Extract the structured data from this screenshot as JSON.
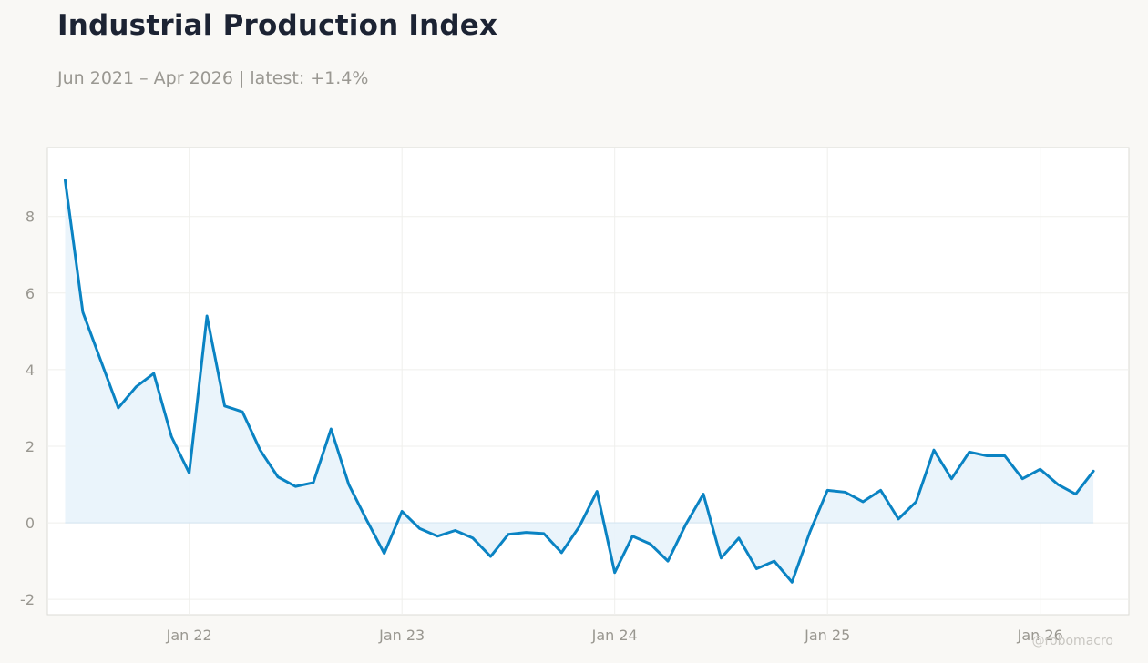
{
  "header": {
    "title": "Industrial Production Index",
    "subtitle": "Jun 2021 – Apr 2026 | latest: +1.4%"
  },
  "watermark": "@robomacro",
  "colors": {
    "line": "#0a83c3",
    "fill": "#e8f3fb",
    "background": "#f9f8f5",
    "plot_background": "#ffffff",
    "grid": "#efefec"
  },
  "chart_data": {
    "type": "area",
    "title": "Industrial Production Index",
    "xlabel": "",
    "ylabel": "",
    "x_range": [
      "2021-05",
      "2026-06"
    ],
    "ylim": [
      -2.4,
      9.8
    ],
    "yticks": [
      -2,
      0,
      2,
      4,
      6,
      8
    ],
    "ytick_labels": [
      "-2",
      "0",
      "2",
      "4",
      "6",
      "8"
    ],
    "xticks": [
      {
        "date": "2022-01",
        "label": "Jan 22"
      },
      {
        "date": "2023-01",
        "label": "Jan 23"
      },
      {
        "date": "2024-01",
        "label": "Jan 24"
      },
      {
        "date": "2025-01",
        "label": "Jan 25"
      },
      {
        "date": "2026-01",
        "label": "Jan 26"
      }
    ],
    "grid": true,
    "legend": "none",
    "series": [
      {
        "dates": [
          "2021-06",
          "2021-07",
          "2021-08",
          "2021-09",
          "2021-10",
          "2021-11",
          "2021-12",
          "2022-01",
          "2022-02",
          "2022-03",
          "2022-04",
          "2022-05",
          "2022-06",
          "2022-07",
          "2022-08",
          "2022-09",
          "2022-10",
          "2022-11",
          "2022-12",
          "2023-01",
          "2023-02",
          "2023-03",
          "2023-04",
          "2023-05",
          "2023-06",
          "2023-07",
          "2023-08",
          "2023-09",
          "2023-10",
          "2023-11",
          "2023-12",
          "2024-01",
          "2024-02",
          "2024-03",
          "2024-04",
          "2024-05",
          "2024-06",
          "2024-07",
          "2024-08",
          "2024-09",
          "2024-10",
          "2024-11",
          "2024-12",
          "2025-01",
          "2025-02",
          "2025-03",
          "2025-04",
          "2025-05",
          "2025-06",
          "2025-07",
          "2025-08",
          "2025-09",
          "2025-10",
          "2025-11",
          "2025-12",
          "2026-01",
          "2026-02",
          "2026-03",
          "2026-04"
        ],
        "values": [
          8.95,
          5.5,
          4.25,
          3.0,
          3.55,
          3.9,
          2.25,
          1.3,
          5.4,
          3.05,
          2.9,
          1.9,
          1.2,
          0.95,
          1.05,
          2.45,
          1.0,
          0.08,
          -0.8,
          0.3,
          -0.15,
          -0.35,
          -0.2,
          -0.4,
          -0.88,
          -0.3,
          -0.25,
          -0.28,
          -0.78,
          -0.1,
          0.82,
          -1.3,
          -0.35,
          -0.55,
          -1.0,
          -0.05,
          0.75,
          -0.92,
          -0.4,
          -1.2,
          -1.0,
          -1.55,
          -0.25,
          0.85,
          0.8,
          0.55,
          0.85,
          0.1,
          0.55,
          1.9,
          1.15,
          1.85,
          1.75,
          1.75,
          1.15,
          1.4,
          1.0,
          0.75,
          1.35
        ]
      }
    ]
  }
}
